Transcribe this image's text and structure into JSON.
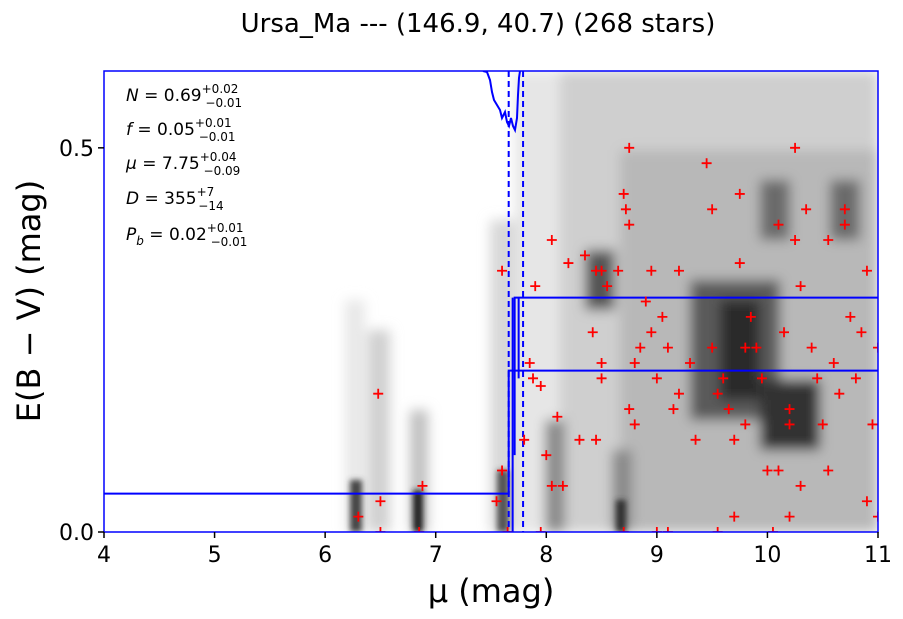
{
  "chart_data": {
    "type": "scatter",
    "title": "Ursa_Ma --- (146.9, 40.7) (268 stars)",
    "xlabel": "μ (mag)",
    "ylabel": "E(B − V) (mag)",
    "xlim": [
      4,
      11
    ],
    "ylim": [
      0,
      0.6
    ],
    "xticks": [
      "4",
      "5",
      "6",
      "7",
      "8",
      "9",
      "10",
      "11"
    ],
    "yticks": [
      "0.0",
      "0.5"
    ],
    "grid": false,
    "background": "grayscale density map",
    "annotations": [
      {
        "symbol": "N",
        "value": "0.69",
        "upper": "+0.02",
        "lower": "−0.01"
      },
      {
        "symbol": "f",
        "value": "0.05",
        "upper": "+0.01",
        "lower": "−0.01"
      },
      {
        "symbol": "μ",
        "value": "7.75",
        "upper": "+0.04",
        "lower": "−0.09"
      },
      {
        "symbol": "D",
        "value": "355",
        "upper": "+7",
        "lower": "−14"
      },
      {
        "symbol": "P",
        "sub": "b",
        "value": "0.02",
        "upper": "+0.01",
        "lower": "−0.01"
      }
    ],
    "fit_model": {
      "color": "#0000ff",
      "mu": 7.75,
      "mu_lower": 7.66,
      "mu_upper": 7.79,
      "foreground_extinction": 0.05,
      "cloud_upper_band": [
        0.21,
        0.305
      ]
    },
    "markers": {
      "color": "#ff0000",
      "symbol": "+"
    },
    "points": [
      [
        6.3,
        0.02
      ],
      [
        6.48,
        0.18
      ],
      [
        6.5,
        0.04
      ],
      [
        6.5,
        0.0
      ],
      [
        6.85,
        0.0
      ],
      [
        6.88,
        0.06
      ],
      [
        7.6,
        0.34
      ],
      [
        7.55,
        0.04
      ],
      [
        7.6,
        0.08
      ],
      [
        7.65,
        0.0
      ],
      [
        7.8,
        0.12
      ],
      [
        7.85,
        0.22
      ],
      [
        7.88,
        0.2
      ],
      [
        7.9,
        0.32
      ],
      [
        7.95,
        0.19
      ],
      [
        7.95,
        0.0
      ],
      [
        8.0,
        0.1
      ],
      [
        8.05,
        0.38
      ],
      [
        8.05,
        0.06
      ],
      [
        8.1,
        0.15
      ],
      [
        8.15,
        0.06
      ],
      [
        8.2,
        0.35
      ],
      [
        8.3,
        0.12
      ],
      [
        8.35,
        0.36
      ],
      [
        8.42,
        0.26
      ],
      [
        8.45,
        0.12
      ],
      [
        8.45,
        0.34
      ],
      [
        8.5,
        0.34
      ],
      [
        8.5,
        0.22
      ],
      [
        8.5,
        0.2
      ],
      [
        8.55,
        0.32
      ],
      [
        8.65,
        0.34
      ],
      [
        8.7,
        0.0
      ],
      [
        8.7,
        0.44
      ],
      [
        8.72,
        0.42
      ],
      [
        8.75,
        0.5
      ],
      [
        8.75,
        0.4
      ],
      [
        8.75,
        0.16
      ],
      [
        8.8,
        0.14
      ],
      [
        8.8,
        0.22
      ],
      [
        8.85,
        0.24
      ],
      [
        8.9,
        0.3
      ],
      [
        8.95,
        0.34
      ],
      [
        8.95,
        0.26
      ],
      [
        9.0,
        0.0
      ],
      [
        9.0,
        0.2
      ],
      [
        9.05,
        0.28
      ],
      [
        9.1,
        0.24
      ],
      [
        9.1,
        0.0
      ],
      [
        9.15,
        0.16
      ],
      [
        9.2,
        0.34
      ],
      [
        9.2,
        0.18
      ],
      [
        9.3,
        0.22
      ],
      [
        9.35,
        0.12
      ],
      [
        9.45,
        0.48
      ],
      [
        9.5,
        0.42
      ],
      [
        9.5,
        0.24
      ],
      [
        9.55,
        0.0
      ],
      [
        9.55,
        0.18
      ],
      [
        9.6,
        0.2
      ],
      [
        9.65,
        0.16
      ],
      [
        9.7,
        0.12
      ],
      [
        9.7,
        0.02
      ],
      [
        9.75,
        0.44
      ],
      [
        9.75,
        0.35
      ],
      [
        9.8,
        0.24
      ],
      [
        9.85,
        0.28
      ],
      [
        9.9,
        0.24
      ],
      [
        9.95,
        0.2
      ],
      [
        10.0,
        0.08
      ],
      [
        10.05,
        0.0
      ],
      [
        10.1,
        0.4
      ],
      [
        10.1,
        0.08
      ],
      [
        10.15,
        0.26
      ],
      [
        10.2,
        0.16
      ],
      [
        10.2,
        0.02
      ],
      [
        10.25,
        0.5
      ],
      [
        10.25,
        0.38
      ],
      [
        10.3,
        0.32
      ],
      [
        10.3,
        0.06
      ],
      [
        10.35,
        0.42
      ],
      [
        10.4,
        0.24
      ],
      [
        10.45,
        0.2
      ],
      [
        10.5,
        0.14
      ],
      [
        10.55,
        0.38
      ],
      [
        10.6,
        0.22
      ],
      [
        10.65,
        0.18
      ],
      [
        10.7,
        0.42
      ],
      [
        10.7,
        0.4
      ],
      [
        10.75,
        0.28
      ],
      [
        10.8,
        0.2
      ],
      [
        10.85,
        0.26
      ],
      [
        10.9,
        0.34
      ],
      [
        10.9,
        0.04
      ],
      [
        11.0,
        0.24
      ],
      [
        11.0,
        0.02
      ],
      [
        10.95,
        0.14
      ],
      [
        10.55,
        0.08
      ],
      [
        10.2,
        0.14
      ],
      [
        9.8,
        0.14
      ]
    ]
  }
}
